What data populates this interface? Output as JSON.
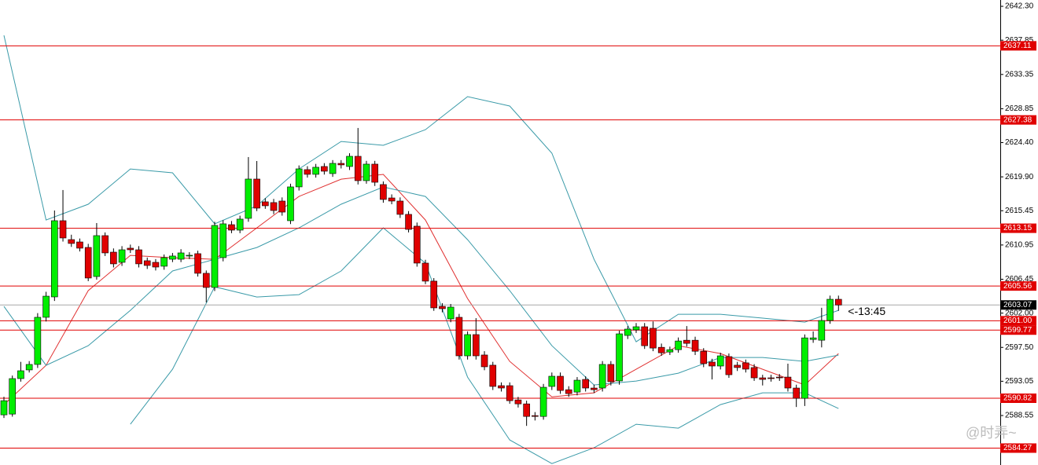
{
  "chart_data": {
    "type": "candlestick",
    "up_color": "#00ee00",
    "down_color": "#e00000",
    "ylim": [
      2582.05,
      2643.13
    ],
    "yticks": [
      {
        "value": 2642.3,
        "label": "2642.30"
      },
      2637.85,
      2633.35,
      2628.85,
      {
        "value": 2624.4,
        "label": "2624.40"
      },
      {
        "value": 2619.9,
        "label": "2619.90"
      },
      2615.45,
      2610.95,
      2606.45,
      {
        "value": 2602.0,
        "label": "2602.00"
      },
      {
        "value": 2597.5,
        "label": "2597.50"
      },
      2593.05,
      2588.55
    ],
    "levels": [
      2637.11,
      2627.38,
      2613.15,
      2605.56,
      {
        "value": 2601.0,
        "label": "2601.00"
      },
      2599.77,
      2590.82,
      2584.27
    ],
    "level_color": "#e00000",
    "current_price": 2603.07,
    "countdown": "<-13:45",
    "watermark": "@时弄~",
    "open": [
      2588.64,
      2588.74,
      2593.4,
      2594.54,
      2595.26,
      2601.45,
      2604.13,
      2614.14,
      2611.66,
      2611.35,
      2610.63,
      2606.81,
      2612.18,
      2610.01,
      2608.67,
      2610.53,
      2610.32,
      2608.88,
      2608.67,
      2608.16,
      2609.08,
      2609.08,
      2609.5,
      2609.81,
      2607.23,
      2605.37,
      2609.29,
      2613.62,
      2612.9,
      2614.45,
      2619.61,
      2616.62,
      2616.52,
      2616.72,
      2614.14,
      2618.58,
      2620.85,
      2620.23,
      2621.26,
      2620.33,
      2621.67,
      2621.26,
      2622.6,
      2619.4,
      2621.57,
      2618.89,
      2617.13,
      2616.72,
      2614.97,
      2613.42,
      2608.57,
      2606.2,
      2602.89,
      2601.24,
      2601.45,
      2596.39,
      2599.18,
      2596.5,
      2595.16,
      2592.47,
      2592.47,
      2590.6,
      2590.08,
      2588.54,
      2588.43,
      2592.37,
      2593.71,
      2591.94,
      2591.63,
      2593.29,
      2592.16,
      2592.16,
      2595.26,
      2593.09,
      2599.07,
      2599.8,
      2600.21,
      2600.01,
      2597.51,
      2596.89,
      2597.2,
      2598.44,
      2598.44,
      2596.99,
      2595.57,
      2595.05,
      2596.29,
      2595.16,
      2595.47,
      2594.85,
      2593.5,
      2593.5,
      2593.6,
      2593.6,
      2592.16,
      2590.81,
      2598.54,
      2598.44,
      2601.03,
      2603.82
    ],
    "high": [
      2591.01,
      2593.8,
      2595.6,
      2595.7,
      2602.0,
      2604.8,
      2615.48,
      2618.17,
      2612.3,
      2611.8,
      2611.1,
      2613.83,
      2612.6,
      2610.5,
      2610.8,
      2611.0,
      2610.8,
      2609.3,
      2609.1,
      2609.7,
      2609.9,
      2610.4,
      2610.0,
      2610.2,
      2607.6,
      2614.0,
      2614.2,
      2614.1,
      2614.8,
      2622.5,
      2621.98,
      2617.1,
      2617.0,
      2617.2,
      2619.0,
      2621.4,
      2621.3,
      2621.6,
      2621.7,
      2622.1,
      2622.1,
      2623.0,
      2626.32,
      2622.0,
      2622.0,
      2619.3,
      2617.6,
      2617.2,
      2615.4,
      2613.9,
      2609.0,
      2606.6,
      2603.3,
      2603.2,
      2601.9,
      2599.6,
      2601.34,
      2597.0,
      2595.6,
      2592.9,
      2592.9,
      2591.0,
      2590.5,
      2589.0,
      2592.7,
      2594.2,
      2594.2,
      2592.4,
      2593.6,
      2593.7,
      2592.6,
      2595.7,
      2595.7,
      2599.7,
      2600.3,
      2600.7,
      2600.7,
      2600.9,
      2598.0,
      2597.6,
      2598.8,
      2600.3,
      2598.9,
      2597.4,
      2596.0,
      2596.8,
      2596.7,
      2595.6,
      2595.9,
      2595.3,
      2593.9,
      2593.9,
      2594.0,
      2595.36,
      2592.6,
      2599.2,
      2599.6,
      2602.7,
      2604.3,
      2604.3
    ],
    "low": [
      2588.23,
      2588.4,
      2593.0,
      2594.2,
      2594.8,
      2600.9,
      2603.6,
      2611.4,
      2610.7,
      2610.1,
      2606.2,
      2606.4,
      2609.5,
      2608.0,
      2608.2,
      2609.9,
      2608.0,
      2607.8,
      2607.6,
      2607.7,
      2608.7,
      2608.7,
      2609.1,
      2606.8,
      2603.41,
      2604.9,
      2608.8,
      2612.5,
      2612.5,
      2614.0,
      2615.4,
      2615.7,
      2615.0,
      2614.8,
      2613.7,
      2618.1,
      2619.8,
      2619.8,
      2620.2,
      2619.9,
      2621.0,
      2620.8,
      2618.9,
      2619.0,
      2618.7,
      2616.5,
      2616.3,
      2614.5,
      2612.6,
      2608.1,
      2605.8,
      2602.3,
      2602.1,
      2600.8,
      2595.9,
      2595.9,
      2595.9,
      2594.5,
      2591.9,
      2591.7,
      2590.1,
      2589.6,
      2587.19,
      2587.9,
      2588.0,
      2591.9,
      2591.4,
      2591.0,
      2591.2,
      2591.7,
      2591.5,
      2591.7,
      2592.5,
      2592.6,
      2598.6,
      2599.4,
      2597.3,
      2597.0,
      2596.4,
      2596.5,
      2596.8,
      2597.6,
      2596.5,
      2594.9,
      2593.29,
      2594.6,
      2593.5,
      2594.4,
      2594.2,
      2593.1,
      2592.5,
      2593.0,
      2593.1,
      2591.7,
      2589.67,
      2589.8,
      2598.1,
      2597.5,
      2600.6,
      2602.3
    ],
    "close": [
      2590.5,
      2593.4,
      2594.43,
      2595.26,
      2601.45,
      2604.23,
      2614.14,
      2611.87,
      2611.15,
      2610.53,
      2606.61,
      2612.18,
      2609.91,
      2608.47,
      2610.32,
      2610.32,
      2608.47,
      2608.26,
      2608.05,
      2609.29,
      2609.5,
      2609.91,
      2609.6,
      2607.23,
      2605.37,
      2613.52,
      2613.73,
      2612.9,
      2614.35,
      2619.61,
      2615.79,
      2616.1,
      2615.48,
      2615.27,
      2618.58,
      2620.95,
      2620.23,
      2621.16,
      2620.64,
      2621.67,
      2621.47,
      2622.6,
      2619.4,
      2621.57,
      2619.19,
      2616.93,
      2616.72,
      2614.97,
      2613.0,
      2608.57,
      2606.2,
      2602.69,
      2602.58,
      2602.79,
      2596.39,
      2599.18,
      2596.39,
      2594.95,
      2592.37,
      2592.16,
      2590.5,
      2590.08,
      2588.43,
      2588.43,
      2592.26,
      2593.71,
      2591.84,
      2591.43,
      2593.19,
      2592.16,
      2591.94,
      2595.26,
      2592.99,
      2599.28,
      2599.9,
      2600.21,
      2597.72,
      2597.41,
      2596.79,
      2597.2,
      2598.34,
      2598.03,
      2596.99,
      2595.36,
      2595.05,
      2596.39,
      2593.91,
      2594.85,
      2594.64,
      2593.5,
      2593.29,
      2593.4,
      2593.5,
      2592.16,
      2590.81,
      2598.75,
      2598.75,
      2601.03,
      2603.82,
      2603.07
    ],
    "overlays": [
      {
        "color": "#e03030",
        "x": [
          0,
          5,
          10,
          15,
          20,
          25,
          30,
          35,
          40,
          45,
          50,
          55,
          60,
          65,
          70,
          75,
          80,
          85,
          90,
          95,
          99
        ],
        "values": [
          2589.98,
          2595.14,
          2604.95,
          2609.59,
          2609.28,
          2609.07,
          2613.2,
          2617.33,
          2619.6,
          2620.22,
          2614.23,
          2603.91,
          2595.66,
          2591.01,
          2591.53,
          2594.63,
          2597.72,
          2596.69,
          2594.63,
          2592.56,
          2596.69
        ]
      },
      {
        "color": "#3a9aa8",
        "x": [
          0,
          5,
          10,
          15,
          20,
          25,
          30,
          35,
          40,
          45,
          50,
          55,
          60,
          65,
          70,
          75,
          80,
          85,
          90,
          95,
          99
        ],
        "values": [
          2638.49,
          2614.23,
          2616.3,
          2620.94,
          2620.43,
          2613.72,
          2616.09,
          2620.94,
          2624.55,
          2624.04,
          2626.1,
          2630.44,
          2629.2,
          2623.01,
          2609.07,
          2598.24,
          2601.85,
          2601.85,
          2601.34,
          2600.82,
          2602.37
        ]
      },
      {
        "color": "#3a9aa8",
        "x": [
          0,
          5,
          10,
          15,
          20,
          25,
          30,
          35,
          40,
          45,
          50,
          55,
          60,
          65,
          70,
          75,
          80,
          85,
          90,
          95,
          99
        ],
        "values": [
          2602.88,
          2595.14,
          2597.72,
          2602.37,
          2607.53,
          2609.07,
          2610.62,
          2613.2,
          2616.3,
          2618.57,
          2617.33,
          2611.65,
          2604.95,
          2597.72,
          2592.56,
          2593.08,
          2594.11,
          2596.17,
          2596.17,
          2595.66,
          2596.48
        ]
      },
      {
        "color": "#3a9aa8",
        "x": [
          0,
          5,
          10,
          15,
          20,
          25,
          30,
          35,
          40,
          45,
          50,
          55,
          60,
          65,
          70,
          75,
          80,
          85,
          90,
          95,
          99
        ],
        "values": [
          null,
          null,
          null,
          2587.4,
          2594.63,
          2605.46,
          2604.12,
          2604.43,
          2607.53,
          2613.2,
          2608.56,
          2593.6,
          2585.34,
          2582.24,
          2584.31,
          2587.4,
          2586.89,
          2589.98,
          2591.53,
          2591.53,
          2589.47
        ]
      }
    ]
  }
}
